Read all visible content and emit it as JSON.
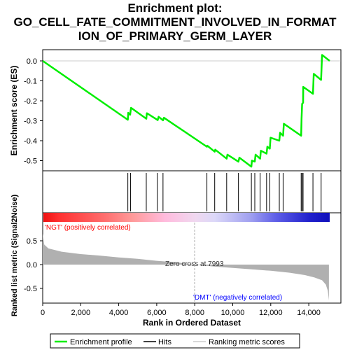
{
  "title_lines": [
    "Enrichment plot:",
    "GO_CELL_FATE_COMMITMENT_INVOLVED_IN_FORMAT",
    "ION_OF_PRIMARY_GERM_LAYER"
  ],
  "colors": {
    "enrichment_line": "#00ee00",
    "hits": "#000000",
    "metric_fill": "#b0b0b0",
    "pos_label": "#ff0000",
    "neg_label": "#0000ff"
  },
  "chart_data": {
    "type": "line",
    "x_range": [
      0,
      15500
    ],
    "x_label": "Rank in Ordered Dataset",
    "x_ticks": [
      0,
      2000,
      4000,
      6000,
      8000,
      10000,
      12000,
      14000
    ],
    "x_tick_labels": [
      "0",
      "2,000",
      "4,000",
      "6,000",
      "8,000",
      "10,000",
      "12,000",
      "14,000"
    ],
    "es_panel": {
      "ylabel": "Enrichment score (ES)",
      "ylim": [
        -0.55,
        0.05
      ],
      "y_ticks": [
        0.0,
        -0.1,
        -0.2,
        -0.3,
        -0.4,
        -0.5
      ],
      "y_tick_labels": [
        "0.0",
        "-0.1",
        "-0.2",
        "-0.3",
        "-0.4",
        "-0.5"
      ],
      "series_name": "Enrichment profile",
      "points": [
        [
          0,
          0.0
        ],
        [
          4480,
          -0.295
        ],
        [
          4500,
          -0.26
        ],
        [
          4600,
          -0.27
        ],
        [
          4650,
          -0.235
        ],
        [
          5450,
          -0.29
        ],
        [
          5480,
          -0.262
        ],
        [
          6050,
          -0.297
        ],
        [
          6100,
          -0.28
        ],
        [
          6330,
          -0.298
        ],
        [
          6380,
          -0.285
        ],
        [
          8640,
          -0.43
        ],
        [
          8660,
          -0.425
        ],
        [
          9050,
          -0.455
        ],
        [
          9080,
          -0.445
        ],
        [
          9680,
          -0.49
        ],
        [
          9720,
          -0.47
        ],
        [
          10300,
          -0.505
        ],
        [
          10350,
          -0.485
        ],
        [
          10980,
          -0.53
        ],
        [
          11010,
          -0.5
        ],
        [
          11160,
          -0.505
        ],
        [
          11200,
          -0.47
        ],
        [
          11440,
          -0.49
        ],
        [
          11480,
          -0.45
        ],
        [
          11780,
          -0.465
        ],
        [
          11820,
          -0.43
        ],
        [
          11950,
          -0.44
        ],
        [
          11990,
          -0.385
        ],
        [
          12450,
          -0.4
        ],
        [
          12490,
          -0.36
        ],
        [
          12650,
          -0.375
        ],
        [
          12690,
          -0.315
        ],
        [
          13600,
          -0.375
        ],
        [
          13620,
          -0.29
        ],
        [
          13650,
          -0.215
        ],
        [
          13700,
          -0.21
        ],
        [
          13710,
          -0.13
        ],
        [
          14220,
          -0.165
        ],
        [
          14260,
          -0.065
        ],
        [
          14650,
          -0.095
        ],
        [
          14700,
          0.03
        ],
        [
          15100,
          0.0
        ]
      ]
    },
    "hits": [
      4480,
      4620,
      5450,
      6030,
      6330,
      8640,
      9050,
      9680,
      10300,
      10980,
      11160,
      11440,
      11780,
      11950,
      12450,
      12650,
      13600,
      13650,
      13700,
      14220,
      14650
    ],
    "metric_panel": {
      "ylabel": "Ranked list metric (Signal2Noise)",
      "ylim": [
        -0.8,
        0.7
      ],
      "y_ticks": [
        0.5,
        0.0,
        -0.5
      ],
      "y_tick_labels": [
        "0.5",
        "0.0",
        "-0.5"
      ],
      "zero_cross_label": "Zero cross at 7993",
      "zero_cross": 7993,
      "pos_label": "'NGT' (positively correlated)",
      "neg_label": "'DMT' (negatively correlated)",
      "curve": [
        [
          0,
          0.65
        ],
        [
          80,
          0.42
        ],
        [
          300,
          0.34
        ],
        [
          1000,
          0.27
        ],
        [
          2000,
          0.22
        ],
        [
          3000,
          0.19
        ],
        [
          4000,
          0.15
        ],
        [
          5000,
          0.12
        ],
        [
          6000,
          0.08
        ],
        [
          7000,
          0.05
        ],
        [
          7993,
          0.0
        ],
        [
          9000,
          -0.04
        ],
        [
          10000,
          -0.07
        ],
        [
          11000,
          -0.1
        ],
        [
          12000,
          -0.13
        ],
        [
          13000,
          -0.17
        ],
        [
          13800,
          -0.22
        ],
        [
          14300,
          -0.27
        ],
        [
          14700,
          -0.33
        ],
        [
          14900,
          -0.42
        ],
        [
          15000,
          -0.55
        ],
        [
          15060,
          -0.75
        ]
      ]
    },
    "color_bar": {
      "stops": [
        [
          0,
          "#ee1111"
        ],
        [
          800,
          "#ff3030"
        ],
        [
          3300,
          "#ff7070"
        ],
        [
          4700,
          "#ff9a9a"
        ],
        [
          6400,
          "#ffbbdd"
        ],
        [
          8000,
          "#f0d8f0"
        ],
        [
          9000,
          "#dcd8f8"
        ],
        [
          10900,
          "#a0a0f0"
        ],
        [
          12200,
          "#6060e8"
        ],
        [
          14000,
          "#2020cc"
        ],
        [
          15060,
          "#1010bb"
        ]
      ]
    },
    "legend": [
      "Enrichment profile",
      "Hits",
      "Ranking metric scores"
    ]
  }
}
